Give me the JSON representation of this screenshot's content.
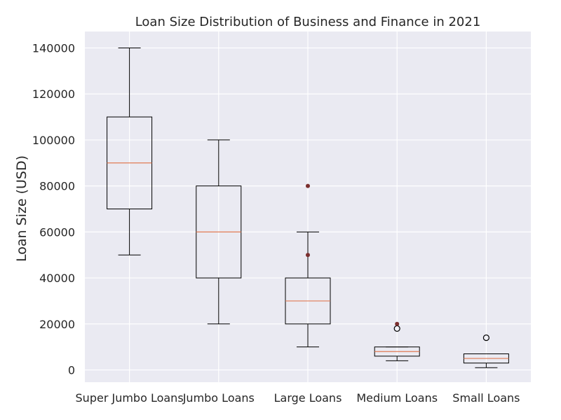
{
  "chart_data": {
    "type": "box",
    "title": "Loan Size Distribution of Business and Finance in 2021",
    "xlabel": "",
    "ylabel": "Loan Size (USD)",
    "ylim": [
      -5000,
      147000
    ],
    "yticks": [
      0,
      20000,
      40000,
      60000,
      80000,
      100000,
      120000,
      140000
    ],
    "categories": [
      "Super Jumbo Loans",
      "Jumbo Loans",
      "Large Loans",
      "Medium Loans",
      "Small Loans"
    ],
    "boxes": [
      {
        "category": "Super Jumbo Loans",
        "whisker_low": 50000,
        "q1": 70000,
        "median": 90000,
        "q3": 110000,
        "whisker_high": 140000,
        "fliers": [],
        "extra_points": []
      },
      {
        "category": "Jumbo Loans",
        "whisker_low": 20000,
        "q1": 40000,
        "median": 60000,
        "q3": 80000,
        "whisker_high": 100000,
        "fliers": [],
        "extra_points": []
      },
      {
        "category": "Large Loans",
        "whisker_low": 10000,
        "q1": 20000,
        "median": 30000,
        "q3": 40000,
        "whisker_high": 60000,
        "fliers": [],
        "extra_points": [
          50000,
          80000
        ]
      },
      {
        "category": "Medium Loans",
        "whisker_low": 4000,
        "q1": 6000,
        "median": 8000,
        "q3": 10000,
        "whisker_high": 10000,
        "fliers": [
          18000
        ],
        "extra_points": [
          20000
        ]
      },
      {
        "category": "Small Loans",
        "whisker_low": 1000,
        "q1": 3000,
        "median": 5000,
        "q3": 7000,
        "whisker_high": 7000,
        "fliers": [
          14000
        ],
        "extra_points": []
      }
    ],
    "grid": true,
    "colors": {
      "background": "#eaeaf2",
      "grid": "#ffffff",
      "box": "#000000",
      "median": "#e07b54",
      "extra_point": "#7a2e2e"
    }
  }
}
